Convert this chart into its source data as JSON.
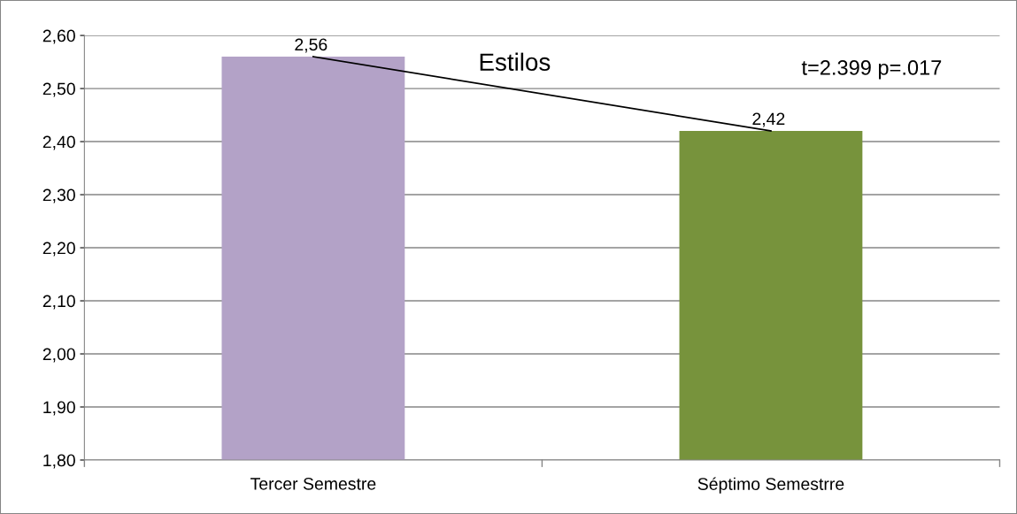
{
  "chart_data": {
    "type": "bar",
    "title": "Estilos",
    "categories": [
      "Tercer Semestre",
      "Séptimo Semestrre"
    ],
    "series": [
      {
        "colors": [
          "#b3a2c7",
          "#77933c"
        ],
        "values": [
          2.56,
          2.42
        ],
        "value_labels": [
          "2,56",
          "2,42"
        ]
      },
      {
        "type": "line",
        "color": "#000000",
        "values": [
          2.56,
          2.42
        ]
      }
    ],
    "ylim": [
      1.8,
      2.6
    ],
    "yticks": [
      {
        "value": 1.8,
        "label": "1,80"
      },
      {
        "value": 1.9,
        "label": "1,90"
      },
      {
        "value": 2.0,
        "label": "2,00"
      },
      {
        "value": 2.1,
        "label": "2,10"
      },
      {
        "value": 2.2,
        "label": "2,20"
      },
      {
        "value": 2.3,
        "label": "2,30"
      },
      {
        "value": 2.4,
        "label": "2,40"
      },
      {
        "value": 2.5,
        "label": "2,50"
      },
      {
        "value": 2.6,
        "label": "2,60"
      }
    ],
    "annotations": [
      "t=2.399 p=.017"
    ],
    "grid": "y",
    "legend": false
  }
}
